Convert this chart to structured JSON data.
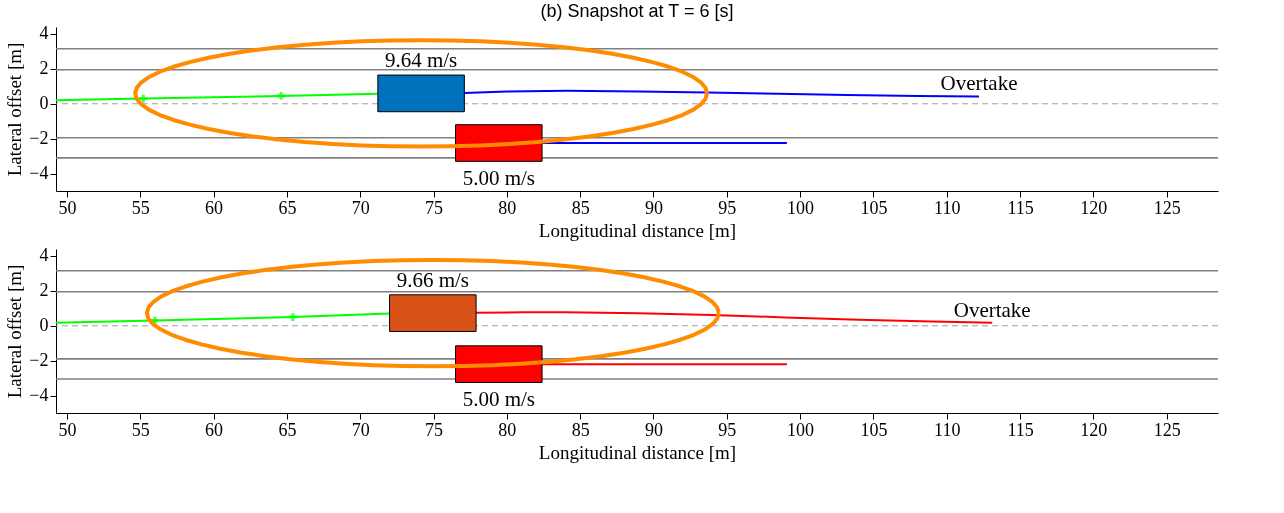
{
  "chart_data": [
    {
      "type": "line",
      "title": "(b) Snapshot at T = 6 [s]",
      "xlabel": "Longitudinal distance [m]",
      "ylabel": "Lateral offset [m]",
      "xlim": [
        49.25,
        128.5
      ],
      "xticks": [
        50,
        55,
        60,
        65,
        70,
        75,
        80,
        85,
        90,
        95,
        100,
        105,
        110,
        115,
        120,
        125
      ],
      "ylim": [
        -5,
        4.4
      ],
      "yticks": [
        -4,
        -2,
        0,
        2,
        4
      ],
      "grid": false,
      "ref_lines": [
        {
          "axis": "y",
          "value": 3.15,
          "color": "#808080",
          "line_style": "solid"
        },
        {
          "axis": "y",
          "value": 1.95,
          "color": "#808080",
          "line_style": "solid"
        },
        {
          "axis": "y",
          "value": 0,
          "color": "#a0a0a0",
          "line_style": "dashed"
        },
        {
          "axis": "y",
          "value": -1.95,
          "color": "#808080",
          "line_style": "solid"
        },
        {
          "axis": "y",
          "value": -3.1,
          "color": "#808080",
          "line_style": "solid"
        }
      ],
      "series": [
        {
          "color": "#00ff00",
          "marker": "none",
          "x": [
            49.25,
            55.2,
            64.6,
            71.2
          ],
          "values": [
            0.2,
            0.3,
            0.45,
            0.57
          ]
        },
        {
          "type": "scatter",
          "color": "#00ff00",
          "marker": "cross",
          "x": [
            55.2,
            64.6
          ],
          "values": [
            0.3,
            0.45
          ]
        },
        {
          "color": "#0000ff",
          "marker": "none",
          "x": [
            77.1,
            80,
            84.1,
            89,
            93.7,
            98.5,
            103.2,
            108,
            112.2
          ],
          "values": [
            0.62,
            0.7,
            0.74,
            0.7,
            0.64,
            0.57,
            0.5,
            0.45,
            0.42
          ]
        },
        {
          "color": "#0000ff",
          "marker": "none",
          "x": [
            82.4,
            99.1
          ],
          "values": [
            -2.25,
            -2.25
          ]
        }
      ],
      "annotations": [
        "9.64 m/s",
        "5.00 m/s",
        "Overtake"
      ]
    },
    {
      "type": "line",
      "xlabel": "Longitudinal distance [m]",
      "ylabel": "Lateral offset [m]",
      "xlim": [
        49.25,
        128.5
      ],
      "xticks": [
        50,
        55,
        60,
        65,
        70,
        75,
        80,
        85,
        90,
        95,
        100,
        105,
        110,
        115,
        120,
        125
      ],
      "ylim": [
        -5,
        4.4
      ],
      "yticks": [
        -4,
        -2,
        0,
        2,
        4
      ],
      "grid": false,
      "ref_lines": [
        {
          "axis": "y",
          "value": 3.15,
          "color": "#808080",
          "line_style": "solid"
        },
        {
          "axis": "y",
          "value": 1.95,
          "color": "#808080",
          "line_style": "solid"
        },
        {
          "axis": "y",
          "value": 0,
          "color": "#a0a0a0",
          "line_style": "dashed"
        },
        {
          "axis": "y",
          "value": -1.9,
          "color": "#808080",
          "line_style": "solid"
        },
        {
          "axis": "y",
          "value": -3.05,
          "color": "#808080",
          "line_style": "solid"
        }
      ],
      "series": [
        {
          "color": "#00ff00",
          "marker": "none",
          "x": [
            49.25,
            56.0,
            65.4,
            72.0
          ],
          "values": [
            0.17,
            0.3,
            0.5,
            0.7
          ]
        },
        {
          "type": "scatter",
          "color": "#00ff00",
          "marker": "cross",
          "x": [
            56.0,
            65.4
          ],
          "values": [
            0.3,
            0.5
          ]
        },
        {
          "color": "#ff0000",
          "marker": "none",
          "x": [
            77.9,
            81,
            84,
            89,
            94,
            99,
            104,
            109,
            113.1
          ],
          "values": [
            0.75,
            0.77,
            0.78,
            0.72,
            0.62,
            0.48,
            0.35,
            0.24,
            0.17
          ]
        },
        {
          "color": "#ff0000",
          "marker": "none",
          "x": [
            82.4,
            99.1
          ],
          "values": [
            -2.2,
            -2.2
          ]
        }
      ],
      "annotations": [
        "9.66 m/s",
        "5.00 m/s",
        "Overtake"
      ]
    }
  ]
}
